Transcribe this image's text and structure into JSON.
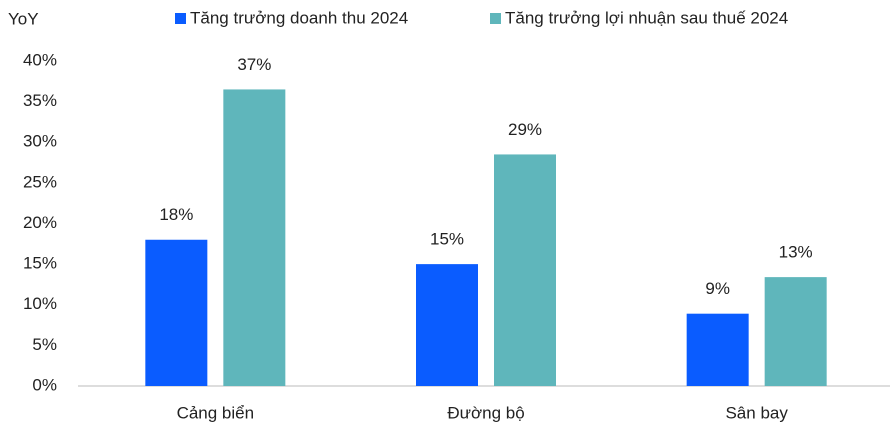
{
  "chart_data": {
    "type": "bar",
    "y_label": "YoY",
    "categories": [
      "Cảng biển",
      "Đường bộ",
      "Sân bay"
    ],
    "series": [
      {
        "name": "Tăng trưởng doanh thu 2024",
        "color": "#0a5cff",
        "values": [
          18,
          15,
          8.9
        ],
        "value_labels": [
          "18%",
          "15%",
          "9%"
        ]
      },
      {
        "name": "Tăng trưởng lợi nhuận sau thuế 2024",
        "color": "#5fb6bb",
        "values": [
          36.5,
          28.5,
          13.4
        ],
        "value_labels": [
          "37%",
          "29%",
          "13%"
        ]
      }
    ],
    "ylim": [
      0,
      40
    ],
    "yticks": [
      {
        "value": 0,
        "label": "0%"
      },
      {
        "value": 5,
        "label": "5%"
      },
      {
        "value": 10,
        "label": "10%"
      },
      {
        "value": 15,
        "label": "15%"
      },
      {
        "value": 20,
        "label": "20%"
      },
      {
        "value": 25,
        "label": "25%"
      },
      {
        "value": 30,
        "label": "30%"
      },
      {
        "value": 35,
        "label": "35%"
      },
      {
        "value": 40,
        "label": "40%"
      }
    ],
    "grid": false
  }
}
